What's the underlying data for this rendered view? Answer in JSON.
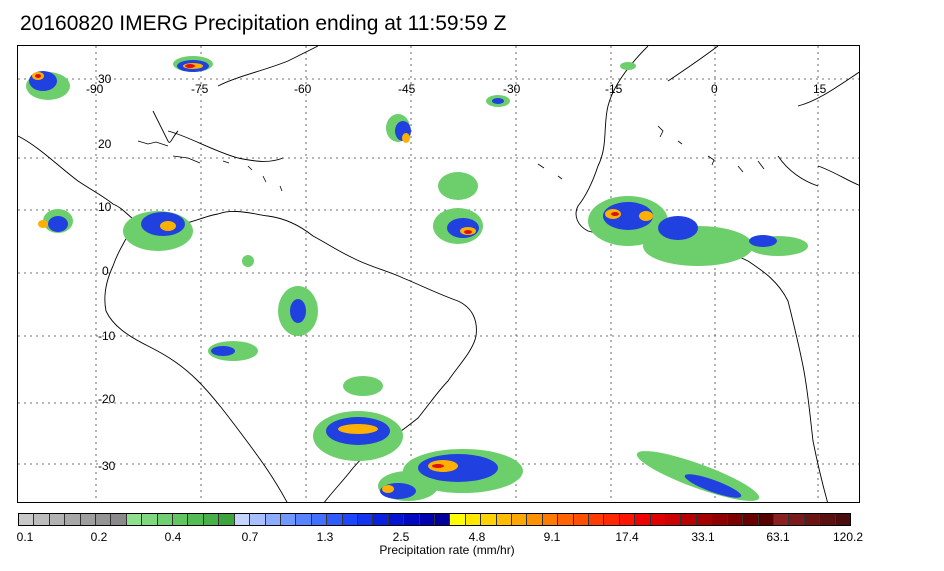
{
  "title": "20160820 IMERG Precipitation ending at 11:59:59 Z",
  "map": {
    "lon_labels": [
      "-90",
      "-75",
      "-60",
      "-45",
      "-30",
      "-15",
      "0",
      "15"
    ],
    "lat_labels": [
      "30",
      "20",
      "10",
      "0",
      "-10",
      "-20",
      "-30"
    ],
    "lon_range": [
      -97,
      20
    ],
    "lat_range": [
      -37,
      35
    ],
    "grid": "dotted"
  },
  "colorbar": {
    "title": "Precipitation rate (mm/hr)",
    "tick_labels": [
      "0.1",
      "0.2",
      "0.4",
      "0.7",
      "1.3",
      "2.5",
      "4.8",
      "9.1",
      "17.4",
      "33.1",
      "63.1",
      "120.2"
    ],
    "colors": [
      "#c8c8c8",
      "#bdbdbd",
      "#b2b2b2",
      "#a8a8a8",
      "#9e9e9e",
      "#949494",
      "#8a8a8a",
      "#8ee08e",
      "#7fd87f",
      "#70cf70",
      "#62c562",
      "#55bb55",
      "#48b048",
      "#3ca43c",
      "#c4d4ff",
      "#a8c0ff",
      "#8cacff",
      "#7098ff",
      "#5a84ff",
      "#4470ff",
      "#305cff",
      "#1e46ff",
      "#1434f0",
      "#0a22e0",
      "#0414d0",
      "#0008c0",
      "#0000b0",
      "#00009e",
      "#ffff00",
      "#ffe800",
      "#ffd200",
      "#ffbc00",
      "#ffa600",
      "#ff9000",
      "#ff7a00",
      "#ff6400",
      "#ff5000",
      "#ff3c00",
      "#ff2800",
      "#ff1400",
      "#f00000",
      "#e00000",
      "#cc0000",
      "#b80000",
      "#a40000",
      "#900000",
      "#7c0000",
      "#6a0000",
      "#580000",
      "#8b2020",
      "#7a1a1a",
      "#6a1414",
      "#5a1010",
      "#4a0c0c"
    ]
  }
}
